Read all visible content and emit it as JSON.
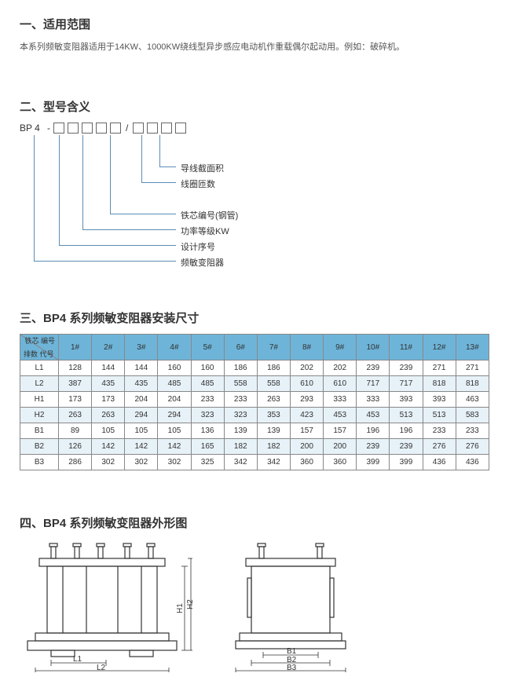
{
  "section1": {
    "title": "一、适用范围",
    "desc": "本系列频敏变阻器适用于14KW、1000KW绕线型异步感应电动机作重载偶尔起动用。例如：破碎机。"
  },
  "section2": {
    "title": "二、型号含义",
    "bp": "BP 4",
    "dash": "-",
    "slash": "/",
    "labels": {
      "l1": "导线截面积",
      "l2": "线圈匝数",
      "l3": "铁芯编号(钢管)",
      "l4": "功率等级KW",
      "l5": "设计序号",
      "l6": "频敏变阻器"
    }
  },
  "section3": {
    "title": "三、BP4 系列频敏变阻器安装尺寸",
    "diag": {
      "top": "铁芯\n编号",
      "left": "排数\n代号"
    },
    "cols": [
      "1#",
      "2#",
      "3#",
      "4#",
      "5#",
      "6#",
      "7#",
      "8#",
      "9#",
      "10#",
      "11#",
      "12#",
      "13#"
    ],
    "rows": [
      {
        "h": "L1",
        "v": [
          128,
          144,
          144,
          160,
          160,
          186,
          186,
          202,
          202,
          239,
          239,
          271,
          271
        ]
      },
      {
        "h": "L2",
        "v": [
          387,
          435,
          435,
          485,
          485,
          558,
          558,
          610,
          610,
          717,
          717,
          818,
          818
        ]
      },
      {
        "h": "H1",
        "v": [
          173,
          173,
          204,
          204,
          233,
          233,
          263,
          293,
          333,
          333,
          393,
          393,
          463
        ]
      },
      {
        "h": "H2",
        "v": [
          263,
          263,
          294,
          294,
          323,
          323,
          353,
          423,
          453,
          453,
          513,
          513,
          583
        ]
      },
      {
        "h": "B1",
        "v": [
          89,
          105,
          105,
          105,
          136,
          139,
          139,
          157,
          157,
          196,
          196,
          233,
          233
        ]
      },
      {
        "h": "B2",
        "v": [
          126,
          142,
          142,
          142,
          165,
          182,
          182,
          200,
          200,
          239,
          239,
          276,
          276
        ]
      },
      {
        "h": "B3",
        "v": [
          286,
          302,
          302,
          302,
          325,
          342,
          342,
          360,
          360,
          399,
          399,
          436,
          436
        ]
      }
    ]
  },
  "section4": {
    "title": "四、BP4 系列频敏变阻器外形图",
    "dims": {
      "L1": "L1",
      "L2": "L2",
      "H1": "H1",
      "H2": "H2",
      "B1": "B1",
      "B2": "B2",
      "B3": "B3"
    }
  },
  "colors": {
    "header_bg": "#6eb4d8",
    "alt_row": "#e7f1f8",
    "border": "#888888",
    "leader": "#5b8cb5"
  }
}
